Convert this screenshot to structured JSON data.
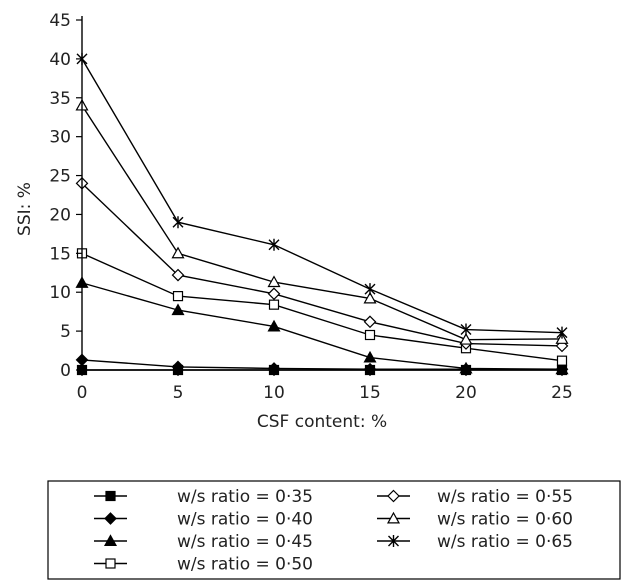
{
  "chart_data": {
    "type": "line",
    "xlabel": "CSF content: %",
    "ylabel": "SSI: %",
    "x": [
      0,
      5,
      10,
      15,
      20,
      25
    ],
    "xlim": [
      0,
      25
    ],
    "ylim": [
      0,
      45
    ],
    "xticks": [
      0,
      5,
      10,
      15,
      20,
      25
    ],
    "yticks": [
      0,
      5,
      10,
      15,
      20,
      25,
      30,
      35,
      40,
      45
    ],
    "grid": false,
    "legend_position": "bottom",
    "series": [
      {
        "name": "w/s ratio = 0·35",
        "marker": "square-filled",
        "values": [
          0,
          0,
          0,
          0,
          0,
          0
        ]
      },
      {
        "name": "w/s ratio = 0·40",
        "marker": "diamond-filled",
        "values": [
          1.3,
          0.4,
          0.2,
          0.1,
          0.1,
          0.1
        ]
      },
      {
        "name": "w/s ratio = 0·45",
        "marker": "triangle-filled",
        "values": [
          11.2,
          7.7,
          5.6,
          1.6,
          0.2,
          0.1
        ]
      },
      {
        "name": "w/s ratio = 0·50",
        "marker": "square-open",
        "values": [
          15.0,
          9.5,
          8.4,
          4.5,
          2.8,
          1.2
        ]
      },
      {
        "name": "w/s ratio = 0·55",
        "marker": "diamond-open",
        "values": [
          24.0,
          12.2,
          9.8,
          6.2,
          3.4,
          3.1
        ]
      },
      {
        "name": "w/s ratio = 0·60",
        "marker": "triangle-open",
        "values": [
          34.0,
          15.0,
          11.3,
          9.2,
          3.9,
          4.0
        ]
      },
      {
        "name": "w/s ratio = 0·65",
        "marker": "star",
        "values": [
          40.0,
          19.0,
          16.1,
          10.4,
          5.2,
          4.8
        ]
      }
    ]
  }
}
